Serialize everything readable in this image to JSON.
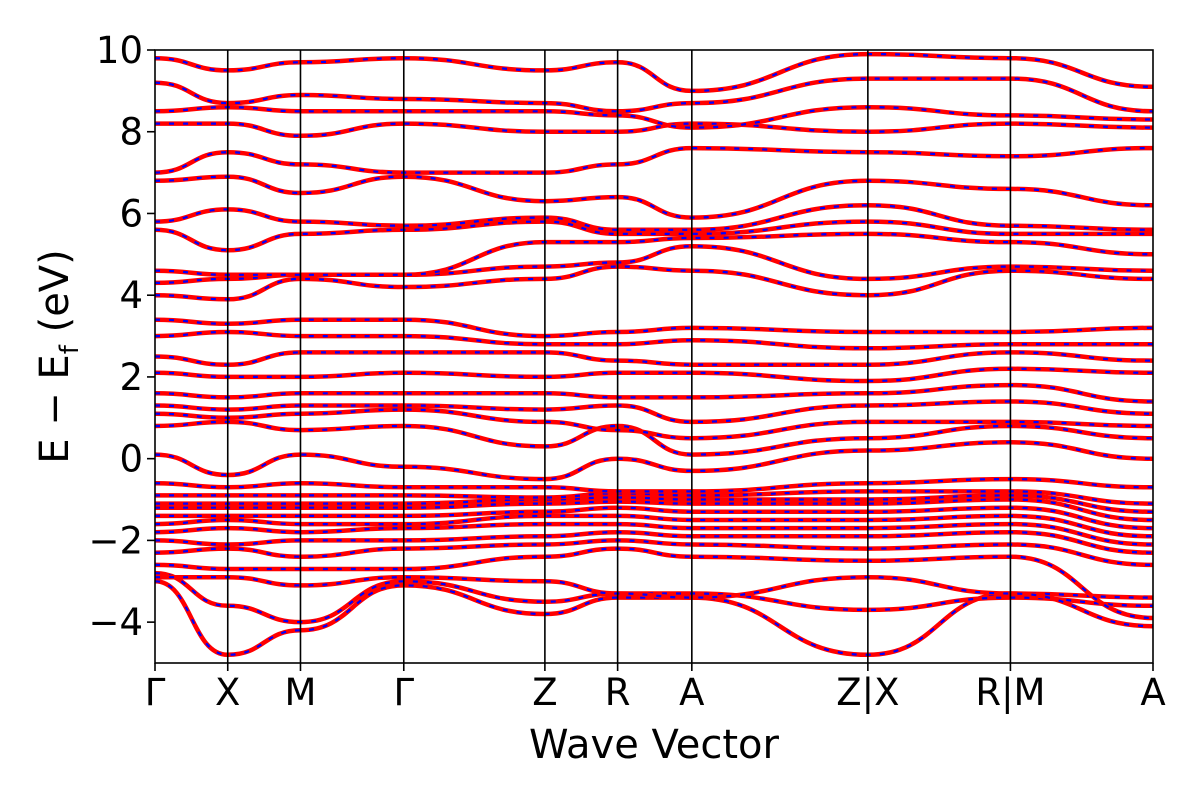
{
  "chart_data": {
    "type": "line",
    "xlabel": "Wave Vector",
    "ylabel": "E − E",
    "ylabel_sub": "f",
    "ylabel_unit": " (eV)",
    "ylim": [
      -5,
      10
    ],
    "yticks": [
      -4,
      -2,
      0,
      2,
      4,
      6,
      8,
      10
    ],
    "ytick_labels": [
      "−4",
      "−2",
      "0",
      "2",
      "4",
      "6",
      "8",
      "10"
    ],
    "kpath": [
      {
        "label": "Γ",
        "x": 0.0
      },
      {
        "label": "X",
        "x": 0.5
      },
      {
        "label": "M",
        "x": 1.0
      },
      {
        "label": "Γ",
        "x": 1.71
      },
      {
        "label": "Z",
        "x": 2.68
      },
      {
        "label": "R",
        "x": 3.18
      },
      {
        "label": "A",
        "x": 3.69
      },
      {
        "label": "Z|X",
        "x": 4.9
      },
      {
        "label": "R|M",
        "x": 5.88
      },
      {
        "label": "A",
        "x": 6.86
      }
    ],
    "xlim": [
      0,
      6.86
    ],
    "grid": false,
    "series": [
      {
        "style": "solid",
        "color": "#ff0000",
        "width": 4.5
      },
      {
        "style": "dashed",
        "color": "#0000ff",
        "width": 2.2
      }
    ],
    "bands": [
      {
        "x": [
          0,
          0.5,
          1.0,
          1.71,
          2.68,
          3.18,
          3.69,
          4.9,
          5.88,
          6.86
        ],
        "y": [
          -3.0,
          -4.8,
          -4.2,
          -3.1,
          -3.8,
          -3.4,
          -3.4,
          -4.8,
          -3.3,
          -3.4
        ]
      },
      {
        "x": [
          0,
          0.5,
          1.0,
          1.71,
          2.68,
          3.18,
          3.69,
          4.9,
          5.88,
          6.86
        ],
        "y": [
          -2.8,
          -3.6,
          -4.0,
          -3.0,
          -3.5,
          -3.3,
          -3.3,
          -3.7,
          -3.4,
          -3.6
        ]
      },
      {
        "x": [
          0,
          0.5,
          1.0,
          1.71,
          2.68,
          3.18,
          3.69,
          4.9,
          5.88,
          6.86
        ],
        "y": [
          -2.9,
          -2.9,
          -3.1,
          -2.9,
          -3.0,
          -3.3,
          -3.4,
          -2.9,
          -3.3,
          -4.1
        ]
      },
      {
        "x": [
          0,
          0.5,
          1.0,
          1.71,
          2.68,
          3.18,
          3.69,
          4.9,
          5.88,
          6.86
        ],
        "y": [
          -2.6,
          -2.7,
          -2.7,
          -2.7,
          -2.4,
          -2.2,
          -2.4,
          -2.5,
          -2.4,
          -3.9
        ]
      },
      {
        "x": [
          0,
          0.5,
          1.0,
          1.71,
          2.68,
          3.18,
          3.69,
          4.9,
          5.88,
          6.86
        ],
        "y": [
          -2.3,
          -2.2,
          -2.4,
          -2.2,
          -2.1,
          -2.0,
          -2.1,
          -2.2,
          -2.1,
          -2.6
        ]
      },
      {
        "x": [
          0,
          0.5,
          1.0,
          1.71,
          2.68,
          3.18,
          3.69,
          4.9,
          5.88,
          6.86
        ],
        "y": [
          -2.0,
          -2.1,
          -2.0,
          -2.0,
          -1.9,
          -1.8,
          -1.9,
          -1.9,
          -1.8,
          -2.3
        ]
      },
      {
        "x": [
          0,
          0.5,
          1.0,
          1.71,
          2.68,
          3.18,
          3.69,
          4.9,
          5.88,
          6.86
        ],
        "y": [
          -1.8,
          -1.7,
          -1.8,
          -1.7,
          -1.6,
          -1.6,
          -1.7,
          -1.7,
          -1.6,
          -2.1
        ]
      },
      {
        "x": [
          0,
          0.5,
          1.0,
          1.71,
          2.68,
          3.18,
          3.69,
          4.9,
          5.88,
          6.86
        ],
        "y": [
          -1.6,
          -1.5,
          -1.6,
          -1.6,
          -1.4,
          -1.4,
          -1.5,
          -1.5,
          -1.4,
          -1.9
        ]
      },
      {
        "x": [
          0,
          0.5,
          1.0,
          1.71,
          2.68,
          3.18,
          3.69,
          4.9,
          5.88,
          6.86
        ],
        "y": [
          -1.4,
          -1.4,
          -1.4,
          -1.4,
          -1.3,
          -1.2,
          -1.3,
          -1.3,
          -1.2,
          -1.7
        ]
      },
      {
        "x": [
          0,
          0.5,
          1.0,
          1.71,
          2.68,
          3.18,
          3.69,
          4.9,
          5.88,
          6.86
        ],
        "y": [
          -1.2,
          -1.2,
          -1.2,
          -1.2,
          -1.1,
          -1.05,
          -1.1,
          -1.1,
          -1.0,
          -1.5
        ]
      },
      {
        "x": [
          0,
          0.5,
          1.0,
          1.71,
          2.68,
          3.18,
          3.69,
          4.9,
          5.88,
          6.86
        ],
        "y": [
          -1.1,
          -1.1,
          -1.1,
          -1.1,
          -1.0,
          -0.95,
          -1.0,
          -1.0,
          -0.9,
          -1.3
        ]
      },
      {
        "x": [
          0,
          0.5,
          1.0,
          1.71,
          2.68,
          3.18,
          3.69,
          4.9,
          5.88,
          6.86
        ],
        "y": [
          -0.9,
          -0.9,
          -0.9,
          -0.9,
          -0.95,
          -0.85,
          -0.9,
          -0.8,
          -0.8,
          -1.1
        ]
      },
      {
        "x": [
          0,
          0.5,
          1.0,
          1.71,
          2.68,
          3.18,
          3.69,
          4.9,
          5.88,
          6.86
        ],
        "y": [
          -0.6,
          -0.7,
          -0.6,
          -0.7,
          -0.7,
          -0.8,
          -0.8,
          -0.6,
          -0.5,
          -0.7
        ]
      },
      {
        "x": [
          0,
          0.5,
          1.0,
          1.71,
          2.68,
          3.18,
          3.69,
          4.9,
          5.88,
          6.86
        ],
        "y": [
          0.1,
          -0.4,
          0.1,
          -0.2,
          -0.5,
          0.0,
          -0.3,
          0.2,
          0.4,
          0.0
        ]
      },
      {
        "x": [
          0,
          0.5,
          1.0,
          1.71,
          2.68,
          3.18,
          3.69,
          4.9,
          5.88,
          6.86
        ],
        "y": [
          0.8,
          0.9,
          0.7,
          0.8,
          0.3,
          0.8,
          0.1,
          0.5,
          0.8,
          0.5
        ]
      },
      {
        "x": [
          0,
          0.5,
          1.0,
          1.71,
          2.68,
          3.18,
          3.69,
          4.9,
          5.88,
          6.86
        ],
        "y": [
          1.1,
          1.0,
          1.1,
          1.2,
          0.9,
          0.7,
          0.5,
          0.9,
          0.9,
          0.8
        ]
      },
      {
        "x": [
          0,
          0.5,
          1.0,
          1.71,
          2.68,
          3.18,
          3.69,
          4.9,
          5.88,
          6.86
        ],
        "y": [
          1.3,
          1.2,
          1.3,
          1.3,
          1.2,
          1.3,
          0.9,
          1.3,
          1.4,
          1.1
        ]
      },
      {
        "x": [
          0,
          0.5,
          1.0,
          1.71,
          2.68,
          3.18,
          3.69,
          4.9,
          5.88,
          6.86
        ],
        "y": [
          1.6,
          1.5,
          1.6,
          1.6,
          1.6,
          1.5,
          1.5,
          1.6,
          1.8,
          1.4
        ]
      },
      {
        "x": [
          0,
          0.5,
          1.0,
          1.71,
          2.68,
          3.18,
          3.69,
          4.9,
          5.88,
          6.86
        ],
        "y": [
          2.1,
          2.0,
          2.0,
          2.1,
          2.0,
          2.1,
          2.1,
          1.9,
          2.2,
          2.1
        ]
      },
      {
        "x": [
          0,
          0.5,
          1.0,
          1.71,
          2.68,
          3.18,
          3.69,
          4.9,
          5.88,
          6.86
        ],
        "y": [
          2.5,
          2.3,
          2.6,
          2.6,
          2.6,
          2.4,
          2.3,
          2.3,
          2.6,
          2.4
        ]
      },
      {
        "x": [
          0,
          0.5,
          1.0,
          1.71,
          2.68,
          3.18,
          3.69,
          4.9,
          5.88,
          6.86
        ],
        "y": [
          3.0,
          3.1,
          3.0,
          3.0,
          2.8,
          2.8,
          2.9,
          2.7,
          2.8,
          2.8
        ]
      },
      {
        "x": [
          0,
          0.5,
          1.0,
          1.71,
          2.68,
          3.18,
          3.69,
          4.9,
          5.88,
          6.86
        ],
        "y": [
          3.4,
          3.3,
          3.4,
          3.4,
          3.0,
          3.1,
          3.2,
          3.1,
          3.1,
          3.2
        ]
      },
      {
        "x": [
          0,
          0.5,
          1.0,
          1.71,
          2.68,
          3.18,
          3.69,
          4.9,
          5.88,
          6.86
        ],
        "y": [
          4.0,
          3.9,
          4.4,
          4.2,
          4.4,
          4.7,
          4.6,
          4.0,
          4.6,
          4.4
        ]
      },
      {
        "x": [
          0,
          0.5,
          1.0,
          1.71,
          2.68,
          3.18,
          3.69,
          4.9,
          5.88,
          6.86
        ],
        "y": [
          4.3,
          4.4,
          4.5,
          4.5,
          4.7,
          4.8,
          5.2,
          4.4,
          4.7,
          4.6
        ]
      },
      {
        "x": [
          0,
          0.5,
          1.0,
          1.71,
          2.68,
          3.18,
          3.69,
          4.9,
          5.88,
          6.86
        ],
        "y": [
          4.6,
          4.5,
          4.5,
          4.5,
          5.3,
          5.3,
          5.4,
          5.5,
          5.3,
          5.0
        ]
      },
      {
        "x": [
          0,
          0.5,
          1.0,
          1.71,
          2.68,
          3.18,
          3.69,
          4.9,
          5.88,
          6.86
        ],
        "y": [
          5.6,
          5.1,
          5.5,
          5.6,
          5.8,
          5.5,
          5.5,
          5.8,
          5.5,
          5.5
        ]
      },
      {
        "x": [
          0,
          0.5,
          1.0,
          1.71,
          2.68,
          3.18,
          3.69,
          4.9,
          5.88,
          6.86
        ],
        "y": [
          5.8,
          6.1,
          5.8,
          5.7,
          5.9,
          5.6,
          5.6,
          6.2,
          5.7,
          5.6
        ]
      },
      {
        "x": [
          0,
          0.5,
          1.0,
          1.71,
          2.68,
          3.18,
          3.69,
          4.9,
          5.88,
          6.86
        ],
        "y": [
          6.8,
          6.9,
          6.5,
          6.9,
          6.3,
          6.4,
          5.9,
          6.8,
          6.6,
          6.2
        ]
      },
      {
        "x": [
          0,
          0.5,
          1.0,
          1.71,
          2.68,
          3.18,
          3.69,
          4.9,
          5.88,
          6.86
        ],
        "y": [
          7.0,
          7.5,
          7.2,
          7.0,
          7.0,
          7.2,
          7.6,
          7.5,
          7.4,
          7.6
        ]
      },
      {
        "x": [
          0,
          0.5,
          1.0,
          1.71,
          2.68,
          3.18,
          3.69,
          4.9,
          5.88,
          6.86
        ],
        "y": [
          8.2,
          8.2,
          7.9,
          8.2,
          8.0,
          8.0,
          8.2,
          8.0,
          8.2,
          8.1
        ]
      },
      {
        "x": [
          0,
          0.5,
          1.0,
          1.71,
          2.68,
          3.18,
          3.69,
          4.9,
          5.88,
          6.86
        ],
        "y": [
          8.5,
          8.6,
          8.5,
          8.5,
          8.5,
          8.4,
          8.1,
          8.6,
          8.4,
          8.3
        ]
      },
      {
        "x": [
          0,
          0.5,
          1.0,
          1.71,
          2.68,
          3.18,
          3.69,
          4.9,
          5.88,
          6.86
        ],
        "y": [
          9.2,
          8.7,
          8.9,
          8.8,
          8.7,
          8.5,
          8.7,
          9.3,
          9.3,
          8.5
        ]
      },
      {
        "x": [
          0,
          0.5,
          1.0,
          1.71,
          2.68,
          3.18,
          3.69,
          4.9,
          5.88,
          6.86
        ],
        "y": [
          9.8,
          9.5,
          9.7,
          9.8,
          9.5,
          9.7,
          9.0,
          9.9,
          9.8,
          9.1
        ]
      }
    ]
  }
}
